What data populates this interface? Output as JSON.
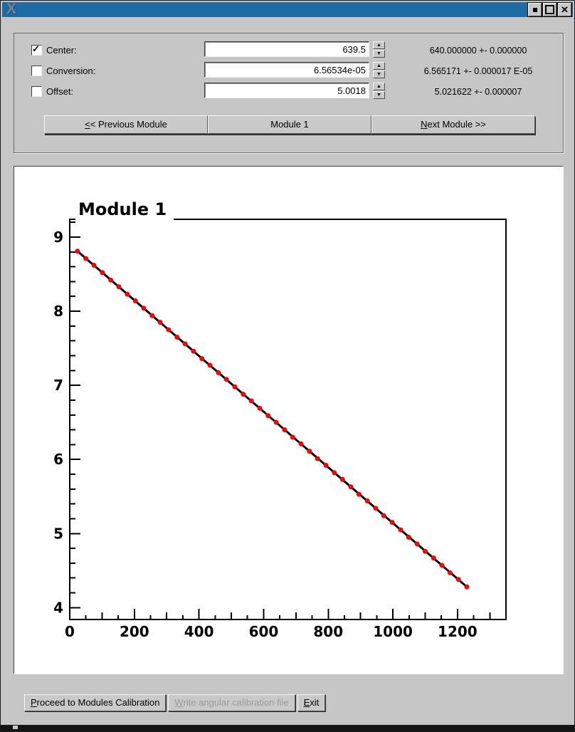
{
  "window": {
    "logo_glyph": "X",
    "titlebar_buttons": [
      "iconify",
      "maximize",
      "close"
    ],
    "close_glyph": "✕",
    "accent_color": "#1e6ca6"
  },
  "controls": {
    "rows": [
      {
        "label": "Center:",
        "checked": true,
        "value": "639.5",
        "fit": "640.000000 +- 0.000000"
      },
      {
        "label": "Conversion:",
        "checked": false,
        "value": "6.56534e-05",
        "fit": "6.565171 +- 0.000017 E-05"
      },
      {
        "label": "Offset:",
        "checked": false,
        "value": "5.0018",
        "fit": "5.021622 +- 0.000007"
      }
    ],
    "check_glyph": "✓",
    "spin_up_glyph": "▲",
    "spin_down_glyph": "▼",
    "prev": {
      "mn": "<",
      "rest": "< Previous Module"
    },
    "module_label": "Module 1",
    "next": {
      "mn": "N",
      "rest": "ext Module >>"
    }
  },
  "footer": {
    "proceed": {
      "mn": "P",
      "rest": "roceed to Modules Calibration"
    },
    "write": {
      "mn": "W",
      "rest": "rite angular calibration file"
    },
    "exit": {
      "mn": "E",
      "rest": "xit"
    }
  },
  "chart_data": {
    "type": "scatter",
    "title": "Module 1",
    "xlabel": "",
    "ylabel": "",
    "xlim": [
      0,
      1350
    ],
    "ylim": [
      3.84,
      9.24
    ],
    "x_labeled_ticks": [
      0,
      200,
      400,
      600,
      800,
      1000,
      1200
    ],
    "x_medium_step": 100,
    "x_minor_step": 50,
    "y_labeled_ticks": [
      4,
      5,
      6,
      7,
      8,
      9
    ],
    "y_minor_step": 0.2,
    "grid": false,
    "legend": null,
    "marker_color": "#ff0000",
    "line_color": "#000000",
    "x": [
      24,
      50,
      75,
      101,
      127,
      152,
      178,
      203,
      229,
      255,
      280,
      306,
      332,
      357,
      383,
      409,
      434,
      460,
      485,
      511,
      537,
      562,
      588,
      614,
      639,
      665,
      690,
      716,
      742,
      767,
      793,
      819,
      844,
      870,
      895,
      921,
      947,
      972,
      998,
      1024,
      1049,
      1075,
      1100,
      1126,
      1152,
      1177,
      1203,
      1229
    ],
    "y": [
      8.81,
      8.71,
      8.62,
      8.52,
      8.42,
      8.33,
      8.23,
      8.14,
      8.04,
      7.94,
      7.85,
      7.75,
      7.65,
      7.56,
      7.46,
      7.36,
      7.27,
      7.17,
      7.08,
      6.98,
      6.88,
      6.79,
      6.69,
      6.59,
      6.5,
      6.4,
      6.3,
      6.21,
      6.11,
      6.01,
      5.92,
      5.82,
      5.73,
      5.63,
      5.53,
      5.44,
      5.34,
      5.24,
      5.15,
      5.05,
      4.95,
      4.86,
      4.76,
      4.67,
      4.57,
      4.47,
      4.38,
      4.28
    ],
    "fit_line": {
      "x1": 24,
      "y1": 8.81,
      "x2": 1229,
      "y2": 4.28
    }
  }
}
